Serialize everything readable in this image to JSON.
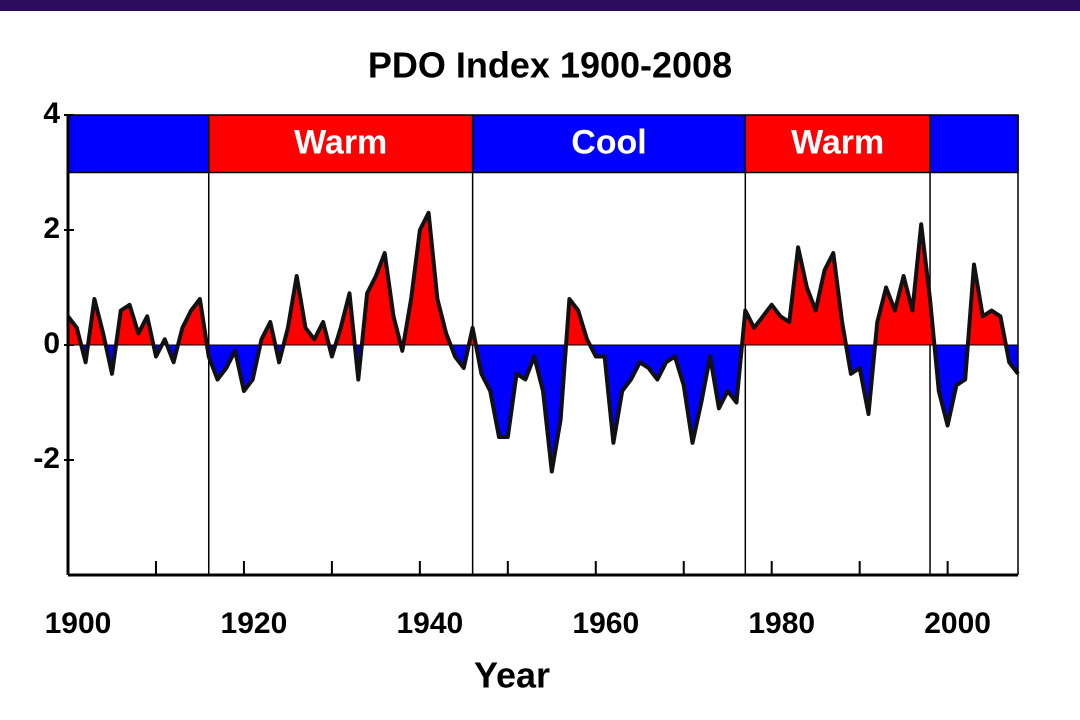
{
  "chart_data": {
    "type": "area-line",
    "title": "PDO Index 1900-2008",
    "x_label": "Year",
    "x": [
      1900,
      1901,
      1902,
      1903,
      1904,
      1905,
      1906,
      1907,
      1908,
      1909,
      1910,
      1911,
      1912,
      1913,
      1914,
      1915,
      1916,
      1917,
      1918,
      1919,
      1920,
      1921,
      1922,
      1923,
      1924,
      1925,
      1926,
      1927,
      1928,
      1929,
      1930,
      1931,
      1932,
      1933,
      1934,
      1935,
      1936,
      1937,
      1938,
      1939,
      1940,
      1941,
      1942,
      1943,
      1944,
      1945,
      1946,
      1947,
      1948,
      1949,
      1950,
      1951,
      1952,
      1953,
      1954,
      1955,
      1956,
      1957,
      1958,
      1959,
      1960,
      1961,
      1962,
      1963,
      1964,
      1965,
      1966,
      1967,
      1968,
      1969,
      1970,
      1971,
      1972,
      1973,
      1974,
      1975,
      1976,
      1977,
      1978,
      1979,
      1980,
      1981,
      1982,
      1983,
      1984,
      1985,
      1986,
      1987,
      1988,
      1989,
      1990,
      1991,
      1992,
      1993,
      1994,
      1995,
      1996,
      1997,
      1998,
      1999,
      2000,
      2001,
      2002,
      2003,
      2004,
      2005,
      2006,
      2007,
      2008
    ],
    "values": [
      0.5,
      0.3,
      -0.3,
      0.8,
      0.2,
      -0.5,
      0.6,
      0.7,
      0.2,
      0.5,
      -0.2,
      0.1,
      -0.3,
      0.3,
      0.6,
      0.8,
      -0.2,
      -0.6,
      -0.4,
      -0.1,
      -0.8,
      -0.6,
      0.1,
      0.4,
      -0.3,
      0.3,
      1.2,
      0.3,
      0.1,
      0.4,
      -0.2,
      0.3,
      0.9,
      -0.6,
      0.9,
      1.2,
      1.6,
      0.5,
      -0.1,
      0.8,
      2.0,
      2.3,
      0.8,
      0.2,
      -0.2,
      -0.4,
      0.3,
      -0.5,
      -0.8,
      -1.6,
      -1.6,
      -0.5,
      -0.6,
      -0.2,
      -0.8,
      -2.2,
      -1.3,
      0.8,
      0.6,
      0.1,
      -0.2,
      -0.2,
      -1.7,
      -0.8,
      -0.6,
      -0.3,
      -0.4,
      -0.6,
      -0.3,
      -0.2,
      -0.7,
      -1.7,
      -1.0,
      -0.2,
      -1.1,
      -0.8,
      -1.0,
      0.6,
      0.3,
      0.5,
      0.7,
      0.5,
      0.4,
      1.7,
      1.0,
      0.6,
      1.3,
      1.6,
      0.4,
      -0.5,
      -0.4,
      -1.2,
      0.4,
      1.0,
      0.6,
      1.2,
      0.6,
      2.1,
      0.8,
      -0.8,
      -1.4,
      -0.7,
      -0.6,
      1.4,
      0.5,
      0.6,
      0.5,
      -0.3,
      -0.5
    ],
    "positive_color": "#ff0000",
    "negative_color": "#0000ff",
    "line_color": "#111111",
    "xlim": [
      1900,
      2008
    ],
    "ylim": [
      -4,
      4
    ],
    "xticks": [
      1900,
      1920,
      1940,
      1960,
      1980,
      2000
    ],
    "xminorticks": [
      1910,
      1930,
      1950,
      1970,
      1990
    ],
    "yticks": [
      4,
      2,
      0,
      -2
    ],
    "regime_band": [
      3,
      4
    ],
    "regimes": [
      {
        "start": 1900,
        "end": 1916,
        "color": "#0000ff"
      },
      {
        "start": 1916,
        "end": 1946,
        "color": "#ff0000",
        "label": "Warm"
      },
      {
        "start": 1946,
        "end": 1977,
        "color": "#0000ff",
        "label": "Cool"
      },
      {
        "start": 1977,
        "end": 1998,
        "color": "#ff0000",
        "label": "Warm"
      },
      {
        "start": 1998,
        "end": 2008,
        "color": "#0000ff"
      }
    ]
  }
}
